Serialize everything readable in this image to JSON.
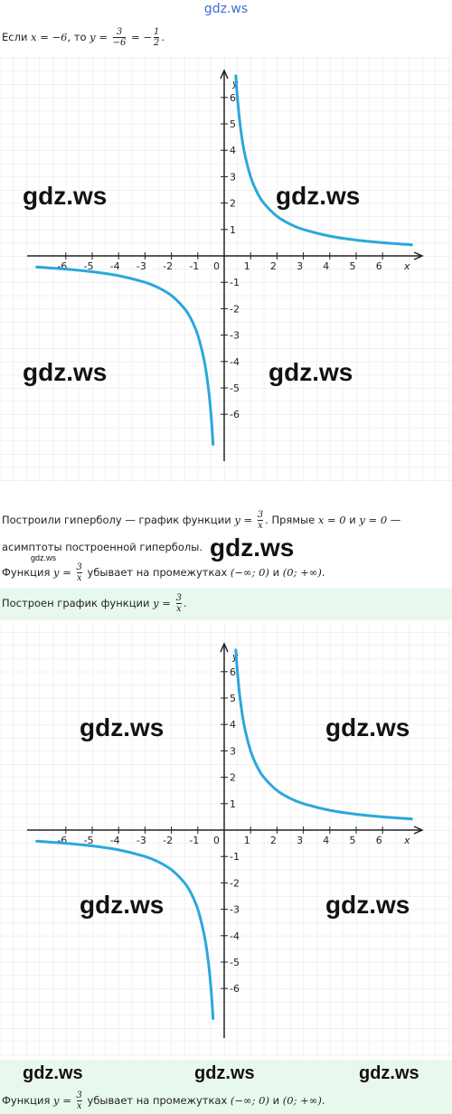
{
  "watermark_top": "gdz.ws",
  "intro": [
    {
      "text": "Если "
    },
    {
      "math": "x = −6"
    },
    {
      "text": ", то "
    },
    {
      "math": "y = "
    },
    {
      "num": "3",
      "den": "−6"
    },
    {
      "math": " = −"
    },
    {
      "num": "1",
      "den": "2"
    },
    {
      "text": "."
    }
  ],
  "graphs": [
    {
      "x_label": "x",
      "y_label": "y",
      "origin_label": "0",
      "xticks": [
        -6,
        -5,
        -4,
        -3,
        -2,
        -1,
        1,
        2,
        3,
        4,
        5,
        6
      ],
      "yticks": [
        -6,
        -5,
        -4,
        -3,
        -2,
        -1,
        1,
        2,
        3,
        4,
        5,
        6
      ],
      "curves": [
        {
          "x": [
            0.44,
            0.5,
            0.6,
            0.75,
            1,
            1.25,
            1.5,
            2,
            2.5,
            3,
            4,
            5,
            6,
            7.1
          ],
          "y": [
            6.82,
            6,
            5,
            4,
            3,
            2.4,
            2,
            1.5,
            1.2,
            1,
            0.75,
            0.6,
            0.5,
            0.42
          ]
        },
        {
          "x": [
            -7.1,
            -6,
            -5,
            -4,
            -3,
            -2.5,
            -2,
            -1.5,
            -1.25,
            -1,
            -0.75,
            -0.6,
            -0.5,
            -0.42
          ],
          "y": [
            -0.42,
            -0.5,
            -0.6,
            -0.75,
            -1,
            -1.2,
            -1.5,
            -2,
            -2.4,
            -3,
            -4,
            -5,
            -6,
            -7.14
          ]
        }
      ],
      "watermarks": [
        "gdz.ws",
        "gdz.ws",
        "gdz.ws",
        "gdz.ws"
      ]
    },
    {
      "x_label": "x",
      "y_label": "y",
      "origin_label": "0",
      "xticks": [
        -6,
        -5,
        -4,
        -3,
        -2,
        -1,
        1,
        2,
        3,
        4,
        5,
        6
      ],
      "yticks": [
        -6,
        -5,
        -4,
        -3,
        -2,
        -1,
        1,
        2,
        3,
        4,
        5,
        6
      ],
      "curves": [
        {
          "x": [
            0.44,
            0.5,
            0.6,
            0.75,
            1,
            1.25,
            1.5,
            2,
            2.5,
            3,
            4,
            5,
            6,
            7.1
          ],
          "y": [
            6.82,
            6,
            5,
            4,
            3,
            2.4,
            2,
            1.5,
            1.2,
            1,
            0.75,
            0.6,
            0.5,
            0.42
          ]
        },
        {
          "x": [
            -7.1,
            -6,
            -5,
            -4,
            -3,
            -2.5,
            -2,
            -1.5,
            -1.25,
            -1,
            -0.75,
            -0.6,
            -0.5,
            -0.42
          ],
          "y": [
            -0.42,
            -0.5,
            -0.6,
            -0.75,
            -1,
            -1.2,
            -1.5,
            -2,
            -2.4,
            -3,
            -4,
            -5,
            -6,
            -7.14
          ]
        }
      ],
      "watermarks": [
        "gdz.ws",
        "gdz.ws",
        "gdz.ws",
        "gdz.ws"
      ]
    }
  ],
  "paragraph_1": [
    {
      "text": "Построили гиперболу — график функции "
    },
    {
      "math": "y = "
    },
    {
      "num": "3",
      "den": "x"
    },
    {
      "text": ". Прямые "
    },
    {
      "math": "x = 0"
    },
    {
      "text": " и "
    },
    {
      "math": "y = 0"
    },
    {
      "text": " — асимптоты построенной гиперболы."
    }
  ],
  "middle_watermarks": [
    "gdz.ws",
    "gdz.ws"
  ],
  "paragraph_2": [
    {
      "text": "Функция "
    },
    {
      "math": "y = "
    },
    {
      "num": "3",
      "den": "x"
    },
    {
      "text": " убывает на промежутках "
    },
    {
      "math": "(−∞; 0)"
    },
    {
      "text": " и "
    },
    {
      "math": "(0; +∞)"
    },
    {
      "text": "."
    }
  ],
  "highlight": [
    {
      "text": "Построен график функции "
    },
    {
      "math": "y = "
    },
    {
      "num": "3",
      "den": "x"
    },
    {
      "text": "."
    }
  ],
  "bottom_watermarks": [
    "gdz.ws",
    "gdz.ws",
    "gdz.ws"
  ],
  "bottom_line": [
    {
      "text": "Функция "
    },
    {
      "math": "y = "
    },
    {
      "num": "3",
      "den": "x"
    },
    {
      "text": " убывает на промежутках "
    },
    {
      "math": "(−∞; 0)"
    },
    {
      "text": " и "
    },
    {
      "math": "(0; +∞)"
    },
    {
      "text": "."
    }
  ]
}
